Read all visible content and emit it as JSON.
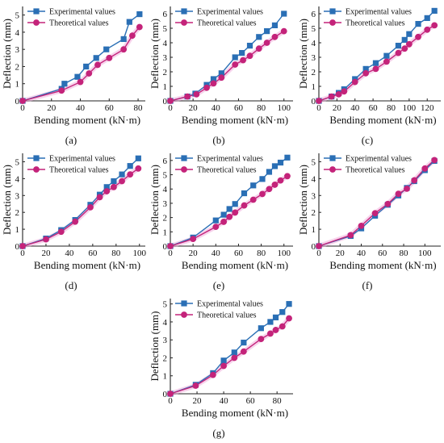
{
  "legend": {
    "experimental": "Experimental values",
    "theoretical": "Theoretical values"
  },
  "colors": {
    "experimental": "#2a6fb5",
    "theoretical": "#c4237a",
    "theoretical_halo": "#ee9ed4"
  },
  "xlabel": "Bending moment (kN·m)",
  "ylabel": "Deflection (mm)",
  "chart_data": [
    {
      "type": "line",
      "panel_label": "(a)",
      "xlim": [
        0,
        85
      ],
      "ylim": [
        0,
        5.5
      ],
      "xticks": [
        0,
        20,
        40,
        60,
        80
      ],
      "yticks": [
        0,
        1,
        2,
        3,
        4,
        5
      ],
      "series": [
        {
          "name": "Experimental values",
          "x": [
            0,
            27,
            29,
            38,
            44,
            51,
            58,
            70,
            74,
            81
          ],
          "y": [
            0,
            0.7,
            1.0,
            1.4,
            2.0,
            2.5,
            3.0,
            3.6,
            4.6,
            5.05
          ]
        },
        {
          "name": "Theoretical values",
          "x": [
            0,
            27,
            40,
            46,
            52,
            60,
            70,
            76,
            81
          ],
          "y": [
            0,
            0.6,
            1.1,
            1.6,
            2.1,
            2.5,
            3.0,
            3.8,
            4.3
          ]
        }
      ]
    },
    {
      "type": "line",
      "panel_label": "(b)",
      "xlim": [
        0,
        108
      ],
      "ylim": [
        0,
        6.5
      ],
      "xticks": [
        0,
        20,
        40,
        60,
        80,
        100
      ],
      "yticks": [
        0,
        1,
        2,
        3,
        4,
        5,
        6
      ],
      "series": [
        {
          "name": "Experimental values",
          "x": [
            0,
            15,
            22,
            32,
            38,
            45,
            57,
            63,
            70,
            78,
            85,
            92,
            100
          ],
          "y": [
            0,
            0.3,
            0.5,
            1.1,
            1.5,
            1.9,
            3.0,
            3.3,
            3.8,
            4.4,
            4.8,
            5.2,
            6.0
          ]
        },
        {
          "name": "Theoretical values",
          "x": [
            0,
            15,
            23,
            32,
            38,
            45,
            57,
            64,
            70,
            78,
            85,
            92,
            100
          ],
          "y": [
            0,
            0.3,
            0.45,
            0.9,
            1.2,
            1.6,
            2.5,
            2.8,
            3.1,
            3.6,
            4.0,
            4.4,
            4.8
          ]
        }
      ]
    },
    {
      "type": "line",
      "panel_label": "(c)",
      "xlim": [
        0,
        135
      ],
      "ylim": [
        0,
        6.5
      ],
      "xticks": [
        0,
        20,
        40,
        60,
        80,
        100,
        120
      ],
      "yticks": [
        0,
        1,
        2,
        3,
        4,
        5,
        6
      ],
      "series": [
        {
          "name": "Experimental values",
          "x": [
            0,
            14,
            22,
            28,
            40,
            52,
            63,
            75,
            88,
            95,
            100,
            110,
            120,
            128
          ],
          "y": [
            0,
            0.3,
            0.55,
            0.8,
            1.5,
            2.2,
            2.6,
            3.1,
            3.8,
            4.2,
            4.6,
            5.3,
            5.7,
            6.2
          ]
        },
        {
          "name": "Theoretical values",
          "x": [
            0,
            14,
            22,
            28,
            40,
            52,
            63,
            75,
            88,
            95,
            100,
            110,
            120,
            128
          ],
          "y": [
            0,
            0.3,
            0.45,
            0.65,
            1.3,
            1.9,
            2.2,
            2.7,
            3.3,
            3.6,
            3.9,
            4.4,
            4.9,
            5.2
          ]
        }
      ]
    },
    {
      "type": "line",
      "panel_label": "(d)",
      "xlim": [
        0,
        105
      ],
      "ylim": [
        0,
        5.5
      ],
      "xticks": [
        0,
        20,
        40,
        60,
        80,
        100
      ],
      "yticks": [
        0,
        1,
        2,
        3,
        4,
        5
      ],
      "series": [
        {
          "name": "Experimental values",
          "x": [
            0,
            20,
            33,
            45,
            58,
            66,
            72,
            78,
            85,
            92,
            99
          ],
          "y": [
            0,
            0.45,
            0.95,
            1.55,
            2.45,
            3.05,
            3.5,
            3.85,
            4.25,
            4.75,
            5.2
          ]
        },
        {
          "name": "Theoretical values",
          "x": [
            0,
            20,
            33,
            45,
            58,
            66,
            72,
            78,
            85,
            92,
            99
          ],
          "y": [
            0,
            0.4,
            0.85,
            1.45,
            2.3,
            2.9,
            3.25,
            3.5,
            3.85,
            4.25,
            4.6
          ]
        }
      ]
    },
    {
      "type": "line",
      "panel_label": "(e)",
      "xlim": [
        0,
        108
      ],
      "ylim": [
        0,
        6.5
      ],
      "xticks": [
        0,
        20,
        40,
        60,
        80,
        100
      ],
      "yticks": [
        0,
        1,
        2,
        3,
        4,
        5,
        6
      ],
      "series": [
        {
          "name": "Experimental values",
          "x": [
            0,
            20,
            40,
            47,
            52,
            57,
            65,
            73,
            81,
            87,
            92,
            97,
            103
          ],
          "y": [
            0,
            0.6,
            1.8,
            2.2,
            2.6,
            2.95,
            3.7,
            4.25,
            4.7,
            5.2,
            5.6,
            5.85,
            6.2
          ]
        },
        {
          "name": "Theoretical values",
          "x": [
            0,
            20,
            40,
            47,
            52,
            57,
            65,
            73,
            81,
            87,
            92,
            97,
            103
          ],
          "y": [
            0,
            0.5,
            1.35,
            1.7,
            2.05,
            2.35,
            2.85,
            3.25,
            3.65,
            4.0,
            4.3,
            4.6,
            4.9
          ]
        }
      ]
    },
    {
      "type": "line",
      "panel_label": "(f)",
      "xlim": [
        0,
        115
      ],
      "ylim": [
        0,
        5.5
      ],
      "xticks": [
        0,
        20,
        40,
        60,
        80,
        100
      ],
      "yticks": [
        0,
        1,
        2,
        3,
        4,
        5
      ],
      "series": [
        {
          "name": "Experimental values",
          "x": [
            0,
            30,
            40,
            53,
            65,
            75,
            83,
            90,
            100,
            109
          ],
          "y": [
            0,
            0.6,
            1.05,
            1.8,
            2.45,
            3.0,
            3.45,
            3.85,
            4.5,
            5.05
          ]
        },
        {
          "name": "Theoretical values",
          "x": [
            0,
            30,
            40,
            53,
            65,
            75,
            83,
            90,
            100,
            109
          ],
          "y": [
            0,
            0.65,
            1.2,
            1.95,
            2.5,
            3.1,
            3.4,
            3.9,
            4.6,
            5.1
          ]
        }
      ]
    },
    {
      "type": "line",
      "panel_label": "(g)",
      "xlim": [
        0,
        92
      ],
      "ylim": [
        0,
        5.3
      ],
      "xticks": [
        0,
        20,
        40,
        60,
        80
      ],
      "yticks": [
        0,
        1,
        2,
        3,
        4,
        5
      ],
      "series": [
        {
          "name": "Experimental values",
          "x": [
            0,
            19,
            32,
            40,
            48,
            55,
            68,
            75,
            79,
            84,
            89
          ],
          "y": [
            0,
            0.5,
            1.15,
            1.85,
            2.3,
            2.85,
            3.65,
            4.0,
            4.25,
            4.55,
            5.0
          ]
        },
        {
          "name": "Theoretical values",
          "x": [
            0,
            19,
            32,
            40,
            48,
            55,
            68,
            75,
            79,
            84,
            89
          ],
          "y": [
            0,
            0.45,
            1.05,
            1.55,
            2.0,
            2.35,
            3.05,
            3.35,
            3.55,
            3.75,
            4.2
          ]
        }
      ]
    }
  ]
}
